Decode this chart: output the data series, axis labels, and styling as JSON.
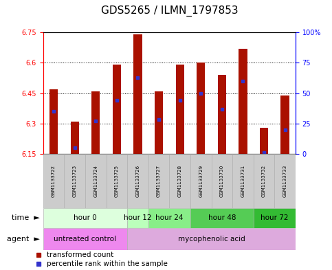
{
  "title": "GDS5265 / ILMN_1797853",
  "samples": [
    "GSM1133722",
    "GSM1133723",
    "GSM1133724",
    "GSM1133725",
    "GSM1133726",
    "GSM1133727",
    "GSM1133728",
    "GSM1133729",
    "GSM1133730",
    "GSM1133731",
    "GSM1133732",
    "GSM1133733"
  ],
  "bar_tops": [
    6.47,
    6.31,
    6.46,
    6.59,
    6.74,
    6.46,
    6.59,
    6.6,
    6.54,
    6.67,
    6.28,
    6.44
  ],
  "bar_bottom": 6.15,
  "percentile_ranks": [
    0.35,
    0.05,
    0.27,
    0.44,
    0.63,
    0.28,
    0.44,
    0.5,
    0.37,
    0.6,
    0.01,
    0.2
  ],
  "ylim": [
    6.15,
    6.75
  ],
  "right_yticks": [
    0,
    0.25,
    0.5,
    0.75,
    1.0
  ],
  "right_yticklabels": [
    "0",
    "25",
    "50",
    "75",
    "100%"
  ],
  "left_yticks": [
    6.15,
    6.3,
    6.45,
    6.6,
    6.75
  ],
  "bar_color": "#aa1100",
  "marker_color": "#3333cc",
  "plot_bg": "#ffffff",
  "time_groups": [
    {
      "label": "hour 0",
      "start": 0,
      "end": 4,
      "bg": "#ddffdd"
    },
    {
      "label": "hour 12",
      "start": 4,
      "end": 5,
      "bg": "#bbffbb"
    },
    {
      "label": "hour 24",
      "start": 5,
      "end": 7,
      "bg": "#88ee88"
    },
    {
      "label": "hour 48",
      "start": 7,
      "end": 10,
      "bg": "#55cc55"
    },
    {
      "label": "hour 72",
      "start": 10,
      "end": 12,
      "bg": "#33bb33"
    }
  ],
  "agent_groups": [
    {
      "label": "untreated control",
      "start": 0,
      "end": 4,
      "bg": "#ee88ee"
    },
    {
      "label": "mycophenolic acid",
      "start": 4,
      "end": 12,
      "bg": "#ddaadd"
    }
  ],
  "legend_items": [
    {
      "color": "#aa1100",
      "label": "transformed count"
    },
    {
      "color": "#3333cc",
      "label": "percentile rank within the sample"
    }
  ],
  "title_fontsize": 11,
  "tick_fontsize": 7,
  "group_label_fontsize": 7.5,
  "row_label_fontsize": 8,
  "legend_fontsize": 7.5
}
